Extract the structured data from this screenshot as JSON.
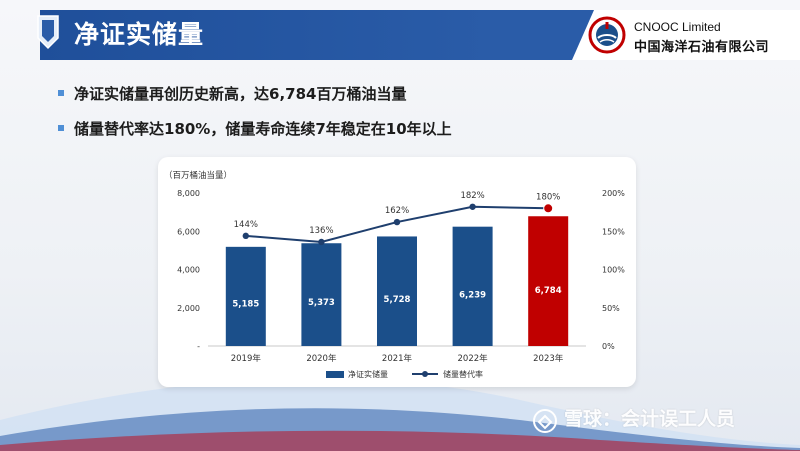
{
  "header": {
    "title": "净证实储量",
    "company_en": "CNOOC Limited",
    "company_cn": "中国海洋石油有限公司"
  },
  "bullets": [
    "净证实储量再创历史新高，达6,784百万桶油当量",
    "储量替代率达180%，储量寿命连续7年稳定在10年以上"
  ],
  "watermark": "雪球：会计误工人员",
  "colors": {
    "header_blue": "#2a5ca8",
    "bar_blue": "#1b4f8a",
    "bar_highlight": "#c00000",
    "line": "#1f3f6e",
    "bullet_blue": "#4f8fd6"
  },
  "chart_data": {
    "type": "bar",
    "title": "",
    "ylabel": "（百万桶油当量）",
    "categories": [
      "2019年",
      "2020年",
      "2021年",
      "2022年",
      "2023年"
    ],
    "ylim": [
      0,
      8000
    ],
    "y2lim": [
      0,
      200
    ],
    "yticks": [
      "-",
      "2,000",
      "4,000",
      "6,000",
      "8,000"
    ],
    "y2ticks": [
      "0%",
      "50%",
      "100%",
      "150%",
      "200%"
    ],
    "series": [
      {
        "name": "净证实储量",
        "type": "bar",
        "axis": "left",
        "values": [
          5185,
          5373,
          5728,
          6239,
          6784
        ],
        "labels": [
          "5,185",
          "5,373",
          "5,728",
          "6,239",
          "6,784"
        ],
        "highlight_index": 4
      },
      {
        "name": "储量替代率",
        "type": "line",
        "axis": "right",
        "values": [
          144,
          136,
          162,
          182,
          180
        ],
        "labels": [
          "144%",
          "136%",
          "162%",
          "182%",
          "180%"
        ]
      }
    ],
    "legend_position": "bottom",
    "grid": false
  }
}
